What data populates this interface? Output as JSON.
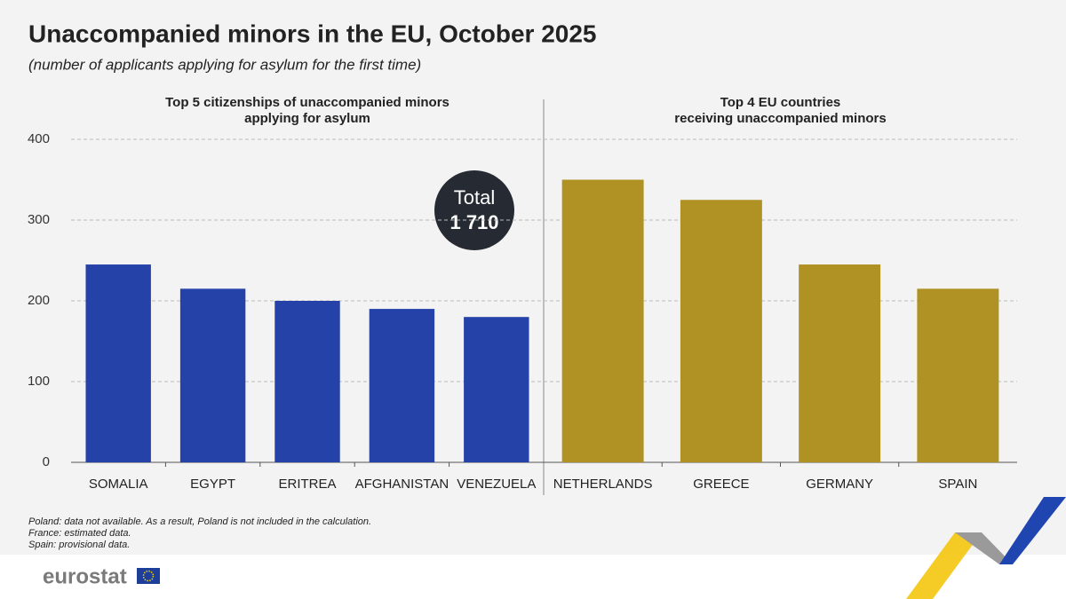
{
  "title": "Unaccompanied minors in the EU, October 2025",
  "subtitle": "(number of applicants applying for asylum for the first time)",
  "annotation": {
    "label": "Total",
    "value": "1 710"
  },
  "notes": [
    "Poland: data not available. As a result, Poland is not included in the calculation.",
    "France: estimated data.",
    "Spain: provisional data."
  ],
  "brand": "eurostat",
  "chart_data": [
    {
      "type": "bar",
      "title": "Top 5 citizenships of unaccompanied minors applying for asylum",
      "categories": [
        "SOMALIA",
        "EGYPT",
        "ERITREA",
        "AFGHANISTAN",
        "VENEZUELA"
      ],
      "values": [
        245,
        215,
        200,
        190,
        180
      ],
      "color": "#2542a8",
      "ylim": [
        0,
        400
      ],
      "yticks": [
        0,
        100,
        200,
        300,
        400
      ],
      "grid": true
    },
    {
      "type": "bar",
      "title": "Top 4 EU countries receiving unaccompanied minors",
      "categories": [
        "NETHERLANDS",
        "GREECE",
        "GERMANY",
        "SPAIN"
      ],
      "values": [
        350,
        325,
        245,
        215
      ],
      "color": "#b09224",
      "ylim": [
        0,
        400
      ],
      "grid": true
    }
  ]
}
